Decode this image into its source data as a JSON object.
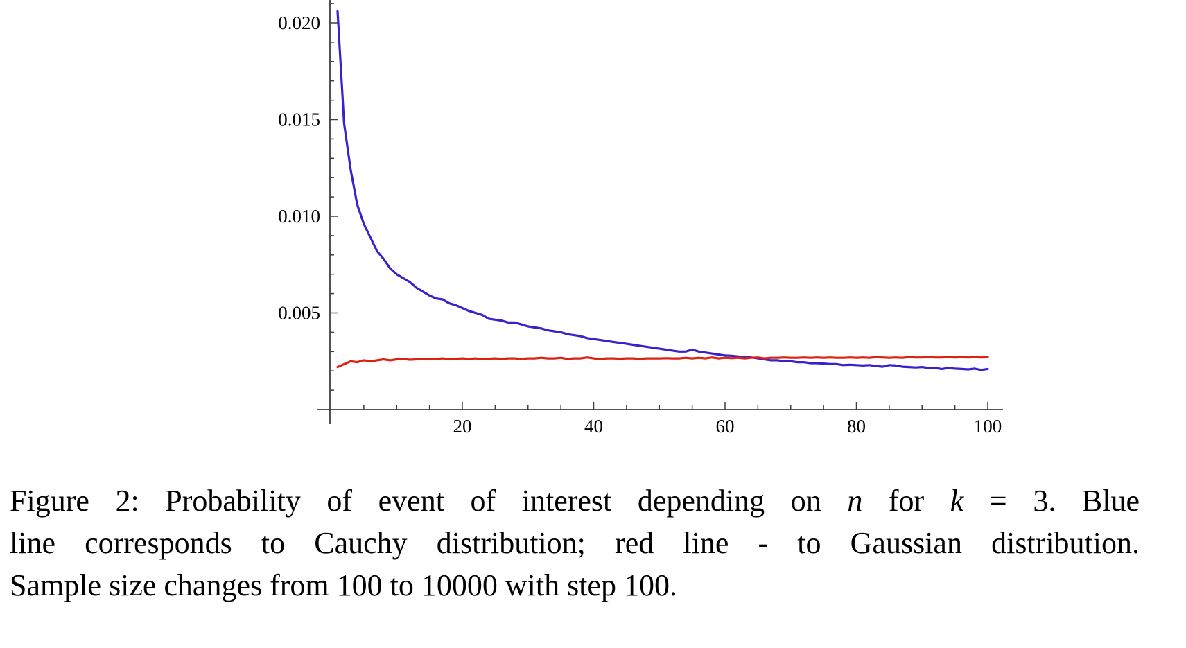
{
  "page": {
    "background": "#ffffff"
  },
  "plot": {
    "axis_color": "#3f3f3f",
    "tick_label_color": "#000000"
  },
  "chart_data": {
    "type": "line",
    "title": "",
    "xlabel": "",
    "ylabel": "",
    "xlim": [
      0,
      102.3
    ],
    "ylim": [
      0,
      0.0212
    ],
    "grid": false,
    "legend_position": "none",
    "x_major_ticks": [
      20,
      40,
      60,
      80,
      100
    ],
    "x_tick_labels": [
      "20",
      "40",
      "60",
      "80",
      "100"
    ],
    "x_minor_tick_step": 5,
    "y_major_ticks": [
      0.005,
      0.01,
      0.015,
      0.02
    ],
    "y_tick_labels": [
      "0.005",
      "0.010",
      "0.015",
      "0.020"
    ],
    "y_minor_tick_step": 0.001,
    "x_start": 1,
    "x_step": 1,
    "x_meaning": "n (sample size changes from 100 to 10000 with step 100)",
    "series": [
      {
        "name": "Cauchy distribution",
        "color": "#3a21cc",
        "values": [
          0.0206,
          0.0148,
          0.0124,
          0.0106,
          0.0096,
          0.0089,
          0.0082,
          0.0078,
          0.0073,
          0.007,
          0.0068,
          0.0066,
          0.0063,
          0.0061,
          0.0059,
          0.00575,
          0.0057,
          0.0055,
          0.0054,
          0.00525,
          0.0051,
          0.005,
          0.0049,
          0.0047,
          0.00465,
          0.0046,
          0.0045,
          0.0045,
          0.0044,
          0.0043,
          0.00425,
          0.0042,
          0.0041,
          0.00405,
          0.004,
          0.0039,
          0.00385,
          0.0038,
          0.0037,
          0.00365,
          0.0036,
          0.00355,
          0.0035,
          0.00345,
          0.0034,
          0.00335,
          0.0033,
          0.00325,
          0.0032,
          0.00315,
          0.0031,
          0.00305,
          0.003,
          0.003,
          0.0031,
          0.003,
          0.00295,
          0.0029,
          0.00285,
          0.0028,
          0.00278,
          0.00275,
          0.00272,
          0.0027,
          0.00265,
          0.0026,
          0.00255,
          0.00255,
          0.0025,
          0.0025,
          0.00245,
          0.00245,
          0.0024,
          0.0024,
          0.00238,
          0.00235,
          0.00235,
          0.0023,
          0.00232,
          0.0023,
          0.00228,
          0.0023,
          0.00225,
          0.00222,
          0.0023,
          0.00228,
          0.00222,
          0.0022,
          0.00218,
          0.0022,
          0.00215,
          0.00215,
          0.0021,
          0.00215,
          0.00212,
          0.0021,
          0.00208,
          0.00212,
          0.00205,
          0.0021
        ]
      },
      {
        "name": "Gaussian distribution",
        "color": "#dc2212",
        "values": [
          0.0022,
          0.00235,
          0.0025,
          0.00245,
          0.00255,
          0.0025,
          0.00255,
          0.0026,
          0.00255,
          0.0026,
          0.00262,
          0.00258,
          0.0026,
          0.00263,
          0.0026,
          0.00262,
          0.00265,
          0.0026,
          0.00263,
          0.00265,
          0.00262,
          0.00265,
          0.0026,
          0.00263,
          0.00265,
          0.00262,
          0.00265,
          0.00265,
          0.00262,
          0.00265,
          0.00265,
          0.00268,
          0.00265,
          0.00265,
          0.00268,
          0.00262,
          0.00265,
          0.00265,
          0.0027,
          0.00265,
          0.00262,
          0.00265,
          0.00265,
          0.00263,
          0.00265,
          0.00265,
          0.00262,
          0.00265,
          0.00265,
          0.00265,
          0.00266,
          0.00265,
          0.00265,
          0.00268,
          0.00265,
          0.00268,
          0.00265,
          0.0027,
          0.00265,
          0.00268,
          0.00266,
          0.00268,
          0.00265,
          0.00268,
          0.0027,
          0.00265,
          0.00268,
          0.00268,
          0.0027,
          0.00268,
          0.00268,
          0.0027,
          0.00268,
          0.0027,
          0.00268,
          0.0027,
          0.00268,
          0.00268,
          0.0027,
          0.00268,
          0.0027,
          0.00268,
          0.00272,
          0.0027,
          0.00268,
          0.0027,
          0.00268,
          0.00272,
          0.0027,
          0.0027,
          0.00272,
          0.0027,
          0.0027,
          0.00272,
          0.0027,
          0.00272,
          0.0027,
          0.00272,
          0.0027,
          0.00272
        ]
      }
    ]
  },
  "caption": {
    "lines": [
      {
        "justify_last": true,
        "segments": [
          {
            "text": "Figure 2:  Probability of event of interest depending on "
          },
          {
            "text": "n",
            "italic": true
          },
          {
            "text": " for "
          },
          {
            "text": "k",
            "italic": true
          },
          {
            "text": " = 3.  Blue"
          }
        ]
      },
      {
        "justify_last": true,
        "segments": [
          {
            "text": "line corresponds to Cauchy distribution; red line - to Gaussian distribution."
          }
        ]
      },
      {
        "justify_last": false,
        "segments": [
          {
            "text": "Sample size changes from 100 to 10000 with step 100."
          }
        ]
      }
    ]
  }
}
